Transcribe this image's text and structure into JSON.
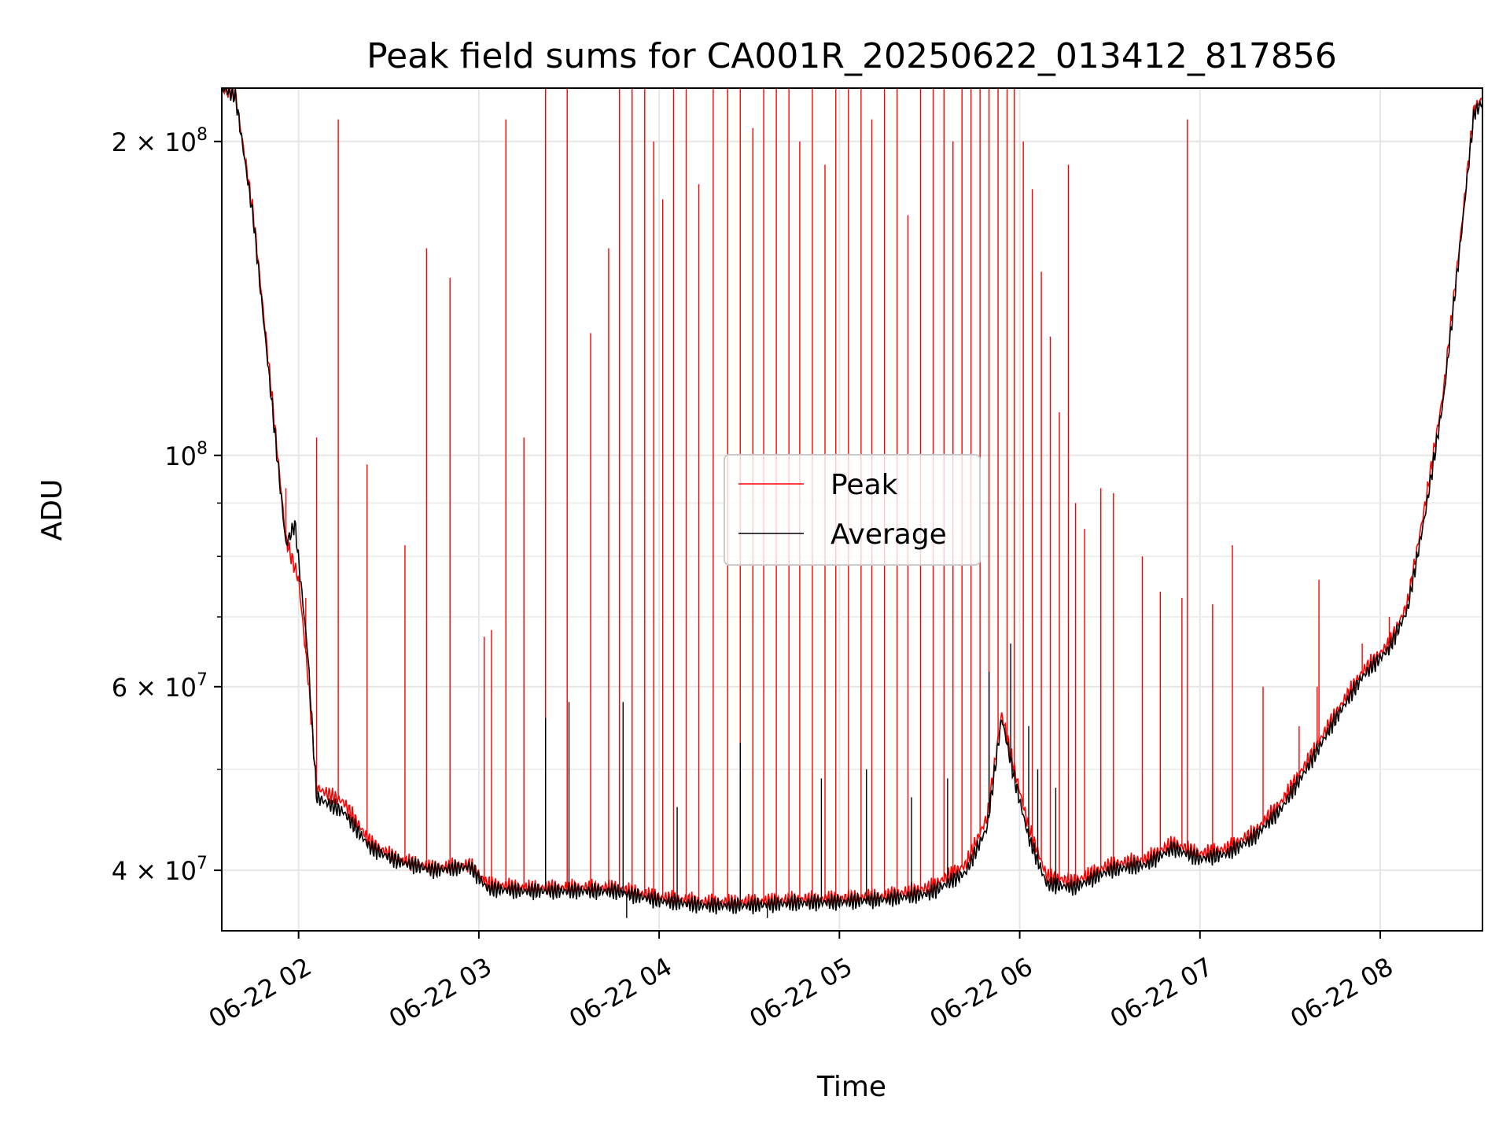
{
  "chart_data": {
    "type": "line",
    "title": "Peak field sums for CA001R_20250622_013412_817856",
    "xlabel": "Time",
    "ylabel": "ADU",
    "yscale": "log",
    "ylim": [
      35000000,
      225000000
    ],
    "xlim_hours": [
      1.574,
      8.567
    ],
    "grid": true,
    "legend_position": "center",
    "x_ticks": [
      {
        "hour": 2,
        "label": "06-22 02"
      },
      {
        "hour": 3,
        "label": "06-22 03"
      },
      {
        "hour": 4,
        "label": "06-22 04"
      },
      {
        "hour": 5,
        "label": "06-22 05"
      },
      {
        "hour": 6,
        "label": "06-22 06"
      },
      {
        "hour": 7,
        "label": "06-22 07"
      },
      {
        "hour": 8,
        "label": "06-22 08"
      }
    ],
    "y_ticks_major": [
      {
        "value": 100000000,
        "base": "10",
        "exp": "8",
        "mant": ""
      },
      {
        "value": 200000000,
        "base": "2 × 10",
        "exp": "8",
        "mant": "2"
      },
      {
        "value": 40000000,
        "base": "4 × 10",
        "exp": "7",
        "mant": "4"
      },
      {
        "value": 60000000,
        "base": "6 × 10",
        "exp": "7",
        "mant": "6"
      }
    ],
    "y_ticks_minor": [
      50000000,
      70000000,
      80000000,
      90000000
    ],
    "series": [
      {
        "name": "Peak",
        "color": "#ff0000",
        "baseline": [
          [
            1.574,
            225000000
          ],
          [
            1.65,
            222000000
          ],
          [
            1.75,
            170000000
          ],
          [
            1.85,
            115000000
          ],
          [
            1.93,
            83000000
          ],
          [
            2.0,
            76000000
          ],
          [
            2.05,
            62000000
          ],
          [
            2.1,
            48000000
          ],
          [
            2.25,
            46500000
          ],
          [
            2.4,
            42500000
          ],
          [
            2.55,
            41000000
          ],
          [
            2.75,
            40200000
          ],
          [
            2.95,
            40500000
          ],
          [
            3.05,
            38800000
          ],
          [
            3.25,
            38500000
          ],
          [
            3.5,
            38500000
          ],
          [
            3.75,
            38500000
          ],
          [
            4.0,
            37700000
          ],
          [
            4.25,
            37300000
          ],
          [
            4.5,
            37300000
          ],
          [
            4.75,
            37500000
          ],
          [
            5.0,
            37600000
          ],
          [
            5.25,
            37800000
          ],
          [
            5.5,
            38500000
          ],
          [
            5.7,
            40500000
          ],
          [
            5.82,
            45000000
          ],
          [
            5.9,
            56500000
          ],
          [
            5.97,
            50000000
          ],
          [
            6.05,
            44000000
          ],
          [
            6.15,
            39500000
          ],
          [
            6.3,
            39000000
          ],
          [
            6.5,
            40500000
          ],
          [
            6.7,
            41000000
          ],
          [
            6.85,
            42500000
          ],
          [
            7.0,
            41500000
          ],
          [
            7.15,
            42000000
          ],
          [
            7.3,
            43500000
          ],
          [
            7.45,
            46500000
          ],
          [
            7.6,
            51000000
          ],
          [
            7.75,
            56500000
          ],
          [
            7.9,
            62000000
          ],
          [
            8.05,
            66000000
          ],
          [
            8.15,
            72000000
          ],
          [
            8.25,
            90000000
          ],
          [
            8.35,
            115000000
          ],
          [
            8.45,
            165000000
          ],
          [
            8.52,
            215000000
          ],
          [
            8.567,
            220000000
          ]
        ],
        "spikes": [
          [
            1.93,
            93000000
          ],
          [
            2.04,
            73000000
          ],
          [
            2.1,
            104000000
          ],
          [
            2.22,
            210000000
          ],
          [
            2.38,
            98000000
          ],
          [
            2.59,
            82000000
          ],
          [
            2.71,
            158000000
          ],
          [
            2.84,
            148000000
          ],
          [
            3.03,
            67000000
          ],
          [
            3.07,
            68000000
          ],
          [
            3.15,
            210000000
          ],
          [
            3.25,
            104000000
          ],
          [
            3.37,
            225000000
          ],
          [
            3.49,
            225000000
          ],
          [
            3.62,
            131000000
          ],
          [
            3.72,
            158000000
          ],
          [
            3.78,
            225000000
          ],
          [
            3.85,
            225000000
          ],
          [
            3.92,
            225000000
          ],
          [
            3.97,
            200000000
          ],
          [
            4.02,
            176000000
          ],
          [
            4.08,
            225000000
          ],
          [
            4.15,
            225000000
          ],
          [
            4.22,
            182000000
          ],
          [
            4.3,
            225000000
          ],
          [
            4.38,
            225000000
          ],
          [
            4.45,
            225000000
          ],
          [
            4.52,
            206000000
          ],
          [
            4.58,
            225000000
          ],
          [
            4.65,
            225000000
          ],
          [
            4.72,
            225000000
          ],
          [
            4.78,
            200000000
          ],
          [
            4.85,
            225000000
          ],
          [
            4.92,
            190000000
          ],
          [
            4.98,
            225000000
          ],
          [
            5.05,
            225000000
          ],
          [
            5.12,
            225000000
          ],
          [
            5.18,
            210000000
          ],
          [
            5.25,
            225000000
          ],
          [
            5.32,
            225000000
          ],
          [
            5.38,
            170000000
          ],
          [
            5.45,
            225000000
          ],
          [
            5.52,
            225000000
          ],
          [
            5.58,
            225000000
          ],
          [
            5.63,
            200000000
          ],
          [
            5.68,
            225000000
          ],
          [
            5.73,
            225000000
          ],
          [
            5.78,
            225000000
          ],
          [
            5.83,
            225000000
          ],
          [
            5.88,
            225000000
          ],
          [
            5.93,
            225000000
          ],
          [
            5.97,
            225000000
          ],
          [
            6.02,
            200000000
          ],
          [
            6.07,
            180000000
          ],
          [
            6.12,
            150000000
          ],
          [
            6.17,
            130000000
          ],
          [
            6.22,
            110000000
          ],
          [
            6.27,
            190000000
          ],
          [
            6.31,
            90000000
          ],
          [
            6.36,
            85000000
          ],
          [
            6.45,
            93000000
          ],
          [
            6.52,
            92000000
          ],
          [
            6.68,
            80000000
          ],
          [
            6.78,
            74000000
          ],
          [
            6.9,
            73000000
          ],
          [
            6.93,
            210000000
          ],
          [
            7.07,
            72000000
          ],
          [
            7.18,
            82000000
          ],
          [
            7.35,
            60000000
          ],
          [
            7.55,
            55000000
          ],
          [
            7.65,
            60000000
          ],
          [
            7.66,
            76000000
          ],
          [
            7.9,
            66000000
          ],
          [
            8.05,
            70000000
          ]
        ]
      },
      {
        "name": "Average",
        "color": "#000000",
        "baseline": [
          [
            1.574,
            225000000
          ],
          [
            1.65,
            221000000
          ],
          [
            1.75,
            168000000
          ],
          [
            1.85,
            113000000
          ],
          [
            1.93,
            82000000
          ],
          [
            1.98,
            86000000
          ],
          [
            2.05,
            65000000
          ],
          [
            2.1,
            47000000
          ],
          [
            2.25,
            45500000
          ],
          [
            2.4,
            42000000
          ],
          [
            2.55,
            40800000
          ],
          [
            2.75,
            40000000
          ],
          [
            2.95,
            40300000
          ],
          [
            3.05,
            38400000
          ],
          [
            3.25,
            38200000
          ],
          [
            3.5,
            38200000
          ],
          [
            3.75,
            38200000
          ],
          [
            4.0,
            37400000
          ],
          [
            4.25,
            37000000
          ],
          [
            4.5,
            37000000
          ],
          [
            4.75,
            37200000
          ],
          [
            5.0,
            37300000
          ],
          [
            5.25,
            37500000
          ],
          [
            5.5,
            38000000
          ],
          [
            5.7,
            39800000
          ],
          [
            5.82,
            44000000
          ],
          [
            5.9,
            56000000
          ],
          [
            5.97,
            49000000
          ],
          [
            6.05,
            43000000
          ],
          [
            6.15,
            38800000
          ],
          [
            6.3,
            38500000
          ],
          [
            6.5,
            40000000
          ],
          [
            6.7,
            40500000
          ],
          [
            6.85,
            42000000
          ],
          [
            7.0,
            41000000
          ],
          [
            7.15,
            41500000
          ],
          [
            7.3,
            43000000
          ],
          [
            7.45,
            45800000
          ],
          [
            7.6,
            50300000
          ],
          [
            7.75,
            55800000
          ],
          [
            7.9,
            61300000
          ],
          [
            8.05,
            65300000
          ],
          [
            8.15,
            71000000
          ],
          [
            8.25,
            88000000
          ],
          [
            8.35,
            113000000
          ],
          [
            8.45,
            163000000
          ],
          [
            8.52,
            213000000
          ],
          [
            8.567,
            218000000
          ]
        ],
        "spikes": [
          [
            3.37,
            56000000
          ],
          [
            3.5,
            58000000
          ],
          [
            3.8,
            58000000
          ],
          [
            3.82,
            36000000
          ],
          [
            4.1,
            46000000
          ],
          [
            4.45,
            53000000
          ],
          [
            4.6,
            36000000
          ],
          [
            4.9,
            49000000
          ],
          [
            5.15,
            50000000
          ],
          [
            5.4,
            47000000
          ],
          [
            5.6,
            49000000
          ],
          [
            5.83,
            62000000
          ],
          [
            5.95,
            66000000
          ],
          [
            6.05,
            55000000
          ],
          [
            6.1,
            50000000
          ],
          [
            6.2,
            48000000
          ]
        ]
      }
    ]
  }
}
